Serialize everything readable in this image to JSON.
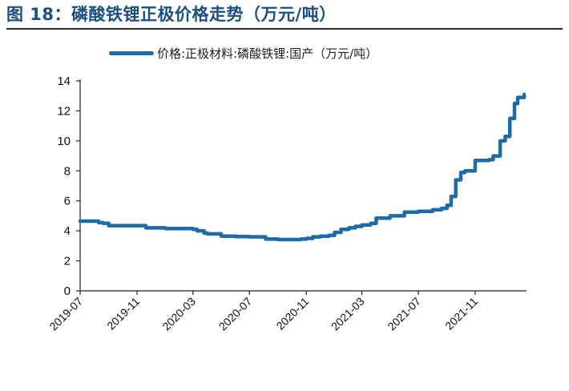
{
  "title": "图 18：磷酸铁锂正极价格走势（万元/吨）",
  "colors": {
    "title": "#1a4f80",
    "series": "#1f6ba8",
    "axis": "#222222"
  },
  "chart_data": {
    "type": "line",
    "title": "磷酸铁锂正极价格走势（万元/吨）",
    "xlabel": "",
    "ylabel": "",
    "ylim": [
      0,
      14
    ],
    "yticks": [
      "0",
      "2",
      "4",
      "6",
      "8",
      "10",
      "12",
      "14"
    ],
    "xticks": [
      "2019-07",
      "2019-11",
      "2020-03",
      "2020-07",
      "2020-11",
      "2021-03",
      "2021-07",
      "2021-11"
    ],
    "xlim": [
      "2019-07",
      "2022-02-20"
    ],
    "grid": false,
    "legend_position": "top",
    "series": [
      {
        "name": "价格:正极材料:磷酸铁锂:国产（万元/吨）",
        "x": [
          "2019-07-01",
          "2019-07-20",
          "2019-08-10",
          "2019-08-20",
          "2019-09-01",
          "2019-09-30",
          "2019-10-20",
          "2019-11-10",
          "2019-11-20",
          "2020-01-01",
          "2020-02-15",
          "2020-03-01",
          "2020-03-10",
          "2020-03-25",
          "2020-04-01",
          "2020-05-01",
          "2020-06-01",
          "2020-07-01",
          "2020-07-20",
          "2020-08-05",
          "2020-09-01",
          "2020-10-01",
          "2020-10-20",
          "2020-11-01",
          "2020-11-15",
          "2020-12-01",
          "2020-12-20",
          "2021-01-01",
          "2021-01-15",
          "2021-02-01",
          "2021-02-15",
          "2021-03-01",
          "2021-03-20",
          "2021-04-01",
          "2021-04-20",
          "2021-05-01",
          "2021-06-01",
          "2021-06-20",
          "2021-07-01",
          "2021-08-01",
          "2021-08-10",
          "2021-08-20",
          "2021-09-01",
          "2021-09-10",
          "2021-09-20",
          "2021-10-01",
          "2021-10-10",
          "2021-11-01",
          "2021-11-20",
          "2021-12-01",
          "2021-12-10",
          "2021-12-25",
          "2022-01-05",
          "2022-01-15",
          "2022-01-25",
          "2022-02-01",
          "2022-02-15"
        ],
        "values": [
          4.65,
          4.65,
          4.55,
          4.5,
          4.35,
          4.35,
          4.35,
          4.35,
          4.2,
          4.15,
          4.15,
          4.1,
          4.0,
          3.85,
          3.8,
          3.65,
          3.62,
          3.6,
          3.6,
          3.45,
          3.42,
          3.42,
          3.45,
          3.5,
          3.6,
          3.65,
          3.7,
          3.9,
          4.1,
          4.2,
          4.3,
          4.4,
          4.5,
          4.85,
          4.85,
          5.0,
          5.25,
          5.25,
          5.3,
          5.4,
          5.4,
          5.5,
          5.7,
          6.3,
          7.4,
          7.9,
          8.0,
          8.7,
          8.7,
          8.75,
          9.0,
          10.0,
          10.3,
          11.5,
          12.5,
          12.9,
          13.1
        ]
      }
    ]
  }
}
